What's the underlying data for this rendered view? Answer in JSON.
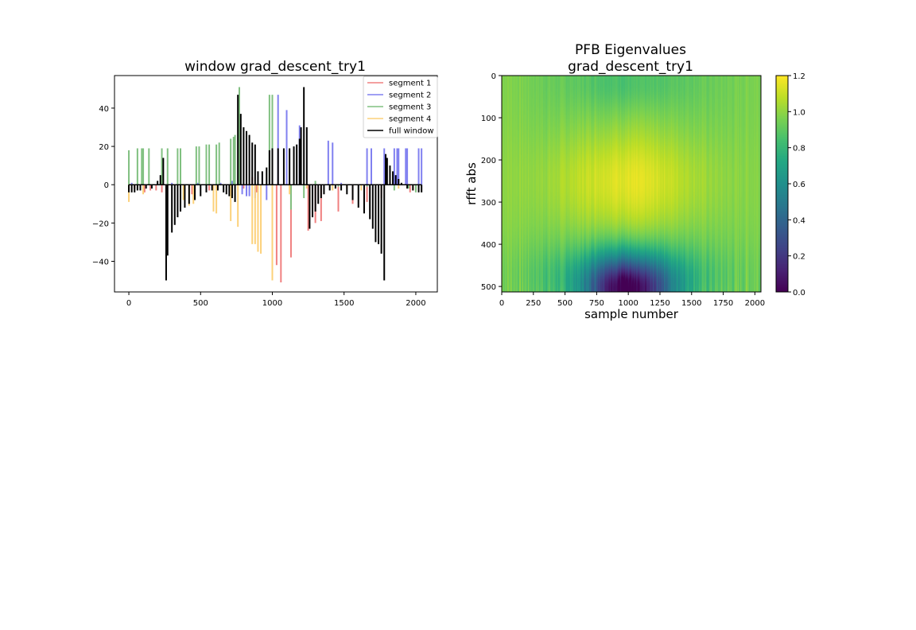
{
  "chart_data": [
    {
      "type": "line",
      "title": "window grad_descent_try1",
      "xlabel": "",
      "ylabel": "",
      "xlim": [
        -100,
        2150
      ],
      "ylim": [
        -56,
        57
      ],
      "xticks": [
        0,
        500,
        1000,
        1500,
        2000
      ],
      "yticks": [
        -40,
        -20,
        0,
        20,
        40
      ],
      "xtick_labels": [
        "0",
        "500",
        "1000",
        "1500",
        "2000"
      ],
      "ytick_labels": [
        "−40",
        "−20",
        "0",
        "20",
        "40"
      ],
      "legend_position": "upper-right",
      "series": [
        {
          "name": "segment 1",
          "color": "#f08080",
          "points": [
            [
              40,
              -2
            ],
            [
              110,
              -4
            ],
            [
              150,
              -3
            ],
            [
              190,
              -3
            ],
            [
              230,
              -4
            ],
            [
              440,
              -5
            ],
            [
              560,
              -3
            ],
            [
              800,
              -2
            ],
            [
              860,
              4
            ],
            [
              890,
              -4
            ],
            [
              1030,
              -42
            ],
            [
              1060,
              -51
            ],
            [
              1130,
              -38
            ],
            [
              1250,
              -24
            ],
            [
              1300,
              -20
            ],
            [
              1340,
              -19
            ],
            [
              1460,
              -14
            ],
            [
              1560,
              -10
            ],
            [
              1660,
              -9
            ],
            [
              1760,
              -7
            ],
            [
              1960,
              -4
            ],
            [
              2000,
              -3
            ]
          ]
        },
        {
          "name": "segment 2",
          "color": "#8080f0",
          "points": [
            [
              20,
              1
            ],
            [
              300,
              1
            ],
            [
              480,
              1
            ],
            [
              640,
              1
            ],
            [
              720,
              2
            ],
            [
              790,
              -5
            ],
            [
              820,
              -6
            ],
            [
              840,
              -6
            ],
            [
              880,
              -7
            ],
            [
              960,
              -8
            ],
            [
              1040,
              47
            ],
            [
              1100,
              39
            ],
            [
              1190,
              31
            ],
            [
              1390,
              23
            ],
            [
              1420,
              22
            ],
            [
              1480,
              1
            ],
            [
              1660,
              19
            ],
            [
              1690,
              19
            ],
            [
              1780,
              19
            ],
            [
              1850,
              19
            ],
            [
              1870,
              19
            ],
            [
              1880,
              19
            ],
            [
              1930,
              19
            ],
            [
              1940,
              19
            ],
            [
              2020,
              19
            ],
            [
              2040,
              19
            ]
          ]
        },
        {
          "name": "segment 3",
          "color": "#80c080",
          "points": [
            [
              0,
              18
            ],
            [
              60,
              19
            ],
            [
              90,
              19
            ],
            [
              100,
              19
            ],
            [
              140,
              19
            ],
            [
              230,
              19
            ],
            [
              270,
              19
            ],
            [
              340,
              19
            ],
            [
              360,
              19
            ],
            [
              470,
              20
            ],
            [
              490,
              20
            ],
            [
              540,
              21
            ],
            [
              560,
              21
            ],
            [
              610,
              21
            ],
            [
              630,
              22
            ],
            [
              710,
              24
            ],
            [
              730,
              25
            ],
            [
              740,
              26
            ],
            [
              770,
              51
            ],
            [
              980,
              47
            ],
            [
              1000,
              47
            ],
            [
              1130,
              -13
            ],
            [
              1220,
              -7
            ],
            [
              1300,
              2
            ],
            [
              1460,
              -1
            ],
            [
              1660,
              -1
            ],
            [
              1850,
              -3
            ],
            [
              1950,
              -2
            ],
            [
              2000,
              -4
            ]
          ]
        },
        {
          "name": "segment 4",
          "color": "#fcd17a",
          "points": [
            [
              0,
              -9
            ],
            [
              100,
              -5
            ],
            [
              380,
              -8
            ],
            [
              420,
              -11
            ],
            [
              450,
              -10
            ],
            [
              590,
              -14
            ],
            [
              610,
              -15
            ],
            [
              710,
              -19
            ],
            [
              760,
              -22
            ],
            [
              860,
              -31
            ],
            [
              880,
              -31
            ],
            [
              900,
              -35
            ],
            [
              920,
              -36
            ],
            [
              1000,
              -50
            ],
            [
              1120,
              -5
            ],
            [
              1240,
              -2
            ],
            [
              1260,
              -13
            ],
            [
              1420,
              -3
            ],
            [
              1520,
              -2
            ],
            [
              1620,
              -3
            ],
            [
              1880,
              -2
            ],
            [
              1980,
              -3
            ]
          ]
        },
        {
          "name": "full window",
          "color": "#000000",
          "points": [
            [
              0,
              -4
            ],
            [
              20,
              -4
            ],
            [
              40,
              -4
            ],
            [
              60,
              -3
            ],
            [
              80,
              -3
            ],
            [
              120,
              -2
            ],
            [
              160,
              -2
            ],
            [
              200,
              2
            ],
            [
              220,
              5
            ],
            [
              240,
              14
            ],
            [
              260,
              -50
            ],
            [
              270,
              -37
            ],
            [
              300,
              -25
            ],
            [
              320,
              -21
            ],
            [
              340,
              -17
            ],
            [
              360,
              -14
            ],
            [
              390,
              -12
            ],
            [
              420,
              -10
            ],
            [
              460,
              -8
            ],
            [
              500,
              -6
            ],
            [
              540,
              -4
            ],
            [
              580,
              -3
            ],
            [
              620,
              -3
            ],
            [
              660,
              -4
            ],
            [
              680,
              -5
            ],
            [
              700,
              -6
            ],
            [
              720,
              -7
            ],
            [
              740,
              -9
            ],
            [
              760,
              47
            ],
            [
              780,
              37
            ],
            [
              800,
              30
            ],
            [
              820,
              28
            ],
            [
              840,
              26
            ],
            [
              860,
              22
            ],
            [
              880,
              21
            ],
            [
              900,
              7
            ],
            [
              930,
              7
            ],
            [
              960,
              9
            ],
            [
              980,
              18
            ],
            [
              1000,
              19
            ],
            [
              1040,
              19
            ],
            [
              1080,
              19
            ],
            [
              1120,
              19
            ],
            [
              1150,
              20
            ],
            [
              1170,
              21
            ],
            [
              1190,
              24
            ],
            [
              1200,
              30
            ],
            [
              1220,
              51
            ],
            [
              1240,
              30
            ],
            [
              1260,
              -23
            ],
            [
              1280,
              -17
            ],
            [
              1300,
              -14
            ],
            [
              1320,
              -10
            ],
            [
              1340,
              -7
            ],
            [
              1360,
              -5
            ],
            [
              1400,
              -3
            ],
            [
              1440,
              -2
            ],
            [
              1480,
              -3
            ],
            [
              1520,
              -5
            ],
            [
              1560,
              -8
            ],
            [
              1600,
              -12
            ],
            [
              1640,
              -15
            ],
            [
              1680,
              -18
            ],
            [
              1700,
              -23
            ],
            [
              1720,
              -30
            ],
            [
              1740,
              -31
            ],
            [
              1760,
              -36
            ],
            [
              1780,
              -50
            ],
            [
              1790,
              16
            ],
            [
              1800,
              14
            ],
            [
              1820,
              10
            ],
            [
              1840,
              7
            ],
            [
              1860,
              5
            ],
            [
              1880,
              3
            ],
            [
              1900,
              1
            ],
            [
              1940,
              -2
            ],
            [
              1980,
              -3
            ],
            [
              2020,
              -4
            ],
            [
              2040,
              -4
            ]
          ]
        }
      ]
    },
    {
      "type": "heatmap",
      "title": "PFB Eigenvalues\ngrad_descent_try1",
      "title_lines": [
        "PFB Eigenvalues",
        "grad_descent_try1"
      ],
      "xlabel": "sample number",
      "ylabel": "rfft abs",
      "xlim": [
        0,
        2048
      ],
      "ylim": [
        0,
        513
      ],
      "xticks": [
        0,
        250,
        500,
        750,
        1000,
        1250,
        1500,
        1750,
        2000
      ],
      "yticks": [
        0,
        100,
        200,
        300,
        400,
        500
      ],
      "colormap": "viridis",
      "colorbar": {
        "min": 0.0,
        "max": 1.2,
        "ticks": [
          0.0,
          0.2,
          0.4,
          0.6,
          0.8,
          1.0,
          1.2
        ],
        "tick_labels": [
          "0.0",
          "0.2",
          "0.4",
          "0.6",
          "0.8",
          "1.0",
          "1.2"
        ]
      },
      "pattern": "bright yellow center near row 250 and sample 1000 (~1.15); green background (~0.9-1.0) with vertical striping; dark purple/blue low values near bottom rows 440-513 around samples 800-1300 (~0.1-0.5)"
    }
  ]
}
